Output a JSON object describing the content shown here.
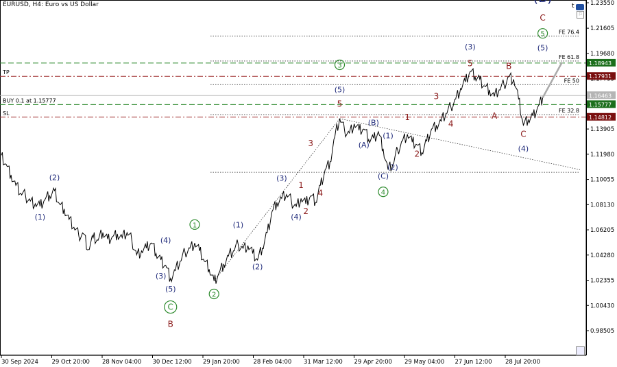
{
  "header": {
    "title": "EURUSD, H4:  Euro vs US Dollar"
  },
  "corner": {
    "t_label": "t"
  },
  "colors": {
    "navy": "#1f2a7a",
    "darkred": "#8b1a1a",
    "green": "#2e8b2e",
    "tp_line": "#a03030",
    "buy_line": "#2e8b2e",
    "fib_line": "#333333",
    "price_green": "#1b6e1b",
    "price_red": "#7a0f0f",
    "price_grey": "#b5b5b5"
  },
  "chart_data": {
    "type": "line",
    "symbol": "EURUSD",
    "timeframe": "H4",
    "y_ticks": [
      1.2355,
      1.21605,
      1.1968,
      1.17755,
      1.1583,
      1.13905,
      1.1198,
      1.10055,
      1.0813,
      1.06205,
      1.0428,
      1.02355,
      1.0043,
      0.98505
    ],
    "y_labels": [
      "1.23550",
      "1.21605",
      "1.19680",
      "1.17755",
      "1.15830",
      "1.13905",
      "1.11980",
      "1.10055",
      "1.08130",
      "1.06205",
      "1.04280",
      "1.02355",
      "1.00430",
      "0.98505"
    ],
    "x_labels": [
      "30 Sep 2024",
      "29 Oct 20:00",
      "28 Nov 04:00",
      "30 Dec 12:00",
      "29 Jan 20:00",
      "28 Feb 04:00",
      "31 Mar 12:00",
      "29 Apr 20:00",
      "29 May 04:00",
      "27 Jun 12:00",
      "28 Jul 20:00"
    ],
    "price_path": [
      [
        0,
        1.119
      ],
      [
        1,
        1.112
      ],
      [
        2,
        1.104
      ],
      [
        3,
        1.096
      ],
      [
        4,
        1.09
      ],
      [
        5,
        1.088
      ],
      [
        6,
        1.084
      ],
      [
        7,
        1.082
      ],
      [
        8,
        1.08
      ],
      [
        9,
        1.085
      ],
      [
        10,
        1.088
      ],
      [
        11,
        1.092
      ],
      [
        12,
        1.082
      ],
      [
        13,
        1.078
      ],
      [
        14,
        1.07
      ],
      [
        15,
        1.064
      ],
      [
        16,
        1.058
      ],
      [
        17,
        1.059
      ],
      [
        18,
        1.047
      ],
      [
        19,
        1.056
      ],
      [
        20,
        1.054
      ],
      [
        21,
        1.06
      ],
      [
        22,
        1.055
      ],
      [
        23,
        1.057
      ],
      [
        24,
        1.059
      ],
      [
        25,
        1.056
      ],
      [
        26,
        1.06
      ],
      [
        27,
        1.054
      ],
      [
        28,
        1.043
      ],
      [
        29,
        1.046
      ],
      [
        30,
        1.048
      ],
      [
        31,
        1.052
      ],
      [
        32,
        1.044
      ],
      [
        33,
        1.039
      ],
      [
        34,
        1.035
      ],
      [
        35,
        1.025
      ],
      [
        36,
        1.031
      ],
      [
        37,
        1.038
      ],
      [
        38,
        1.045
      ],
      [
        39,
        1.048
      ],
      [
        40,
        1.052
      ],
      [
        41,
        1.046
      ],
      [
        42,
        1.038
      ],
      [
        43,
        1.032
      ],
      [
        44,
        1.023
      ],
      [
        45,
        1.029
      ],
      [
        46,
        1.036
      ],
      [
        47,
        1.042
      ],
      [
        48,
        1.046
      ],
      [
        49,
        1.051
      ],
      [
        50,
        1.048
      ],
      [
        51,
        1.05
      ],
      [
        52,
        1.044
      ],
      [
        53,
        1.039
      ],
      [
        54,
        1.048
      ],
      [
        55,
        1.06
      ],
      [
        56,
        1.076
      ],
      [
        57,
        1.083
      ],
      [
        58,
        1.086
      ],
      [
        59,
        1.089
      ],
      [
        60,
        1.084
      ],
      [
        61,
        1.08
      ],
      [
        62,
        1.086
      ],
      [
        63,
        1.082
      ],
      [
        64,
        1.088
      ],
      [
        65,
        1.083
      ],
      [
        66,
        1.096
      ],
      [
        67,
        1.108
      ],
      [
        68,
        1.114
      ],
      [
        69,
        1.133
      ],
      [
        70,
        1.147
      ],
      [
        71,
        1.138
      ],
      [
        72,
        1.136
      ],
      [
        73,
        1.143
      ],
      [
        74,
        1.138
      ],
      [
        75,
        1.139
      ],
      [
        76,
        1.131
      ],
      [
        77,
        1.132
      ],
      [
        78,
        1.137
      ],
      [
        79,
        1.124
      ],
      [
        80,
        1.108
      ],
      [
        81,
        1.112
      ],
      [
        82,
        1.123
      ],
      [
        83,
        1.13
      ],
      [
        84,
        1.135
      ],
      [
        85,
        1.129
      ],
      [
        86,
        1.127
      ],
      [
        87,
        1.121
      ],
      [
        88,
        1.13
      ],
      [
        89,
        1.139
      ],
      [
        90,
        1.142
      ],
      [
        91,
        1.145
      ],
      [
        92,
        1.151
      ],
      [
        93,
        1.156
      ],
      [
        94,
        1.162
      ],
      [
        95,
        1.17
      ],
      [
        96,
        1.175
      ],
      [
        97,
        1.183
      ],
      [
        98,
        1.179
      ],
      [
        99,
        1.177
      ],
      [
        100,
        1.172
      ],
      [
        101,
        1.169
      ],
      [
        102,
        1.164
      ],
      [
        103,
        1.169
      ],
      [
        104,
        1.173
      ],
      [
        105,
        1.179
      ],
      [
        106,
        1.177
      ],
      [
        107,
        1.162
      ],
      [
        108,
        1.142
      ],
      [
        109,
        1.146
      ],
      [
        110,
        1.149
      ],
      [
        111,
        1.156
      ],
      [
        112,
        1.163
      ]
    ],
    "projection": [
      [
        112,
        1.163
      ],
      [
        116,
        1.19
      ]
    ],
    "horizontal_lines": [
      {
        "name": "tp",
        "label": "TP",
        "price": 1.17931,
        "style": "dashdot",
        "color": "#a03030"
      },
      {
        "name": "buy",
        "label": "BUY 0.1 at 1.15777",
        "price": 1.15777,
        "style": "dashed",
        "color": "#2e8b2e"
      },
      {
        "name": "sl",
        "label": "SL",
        "price": 1.14812,
        "style": "dashdot",
        "color": "#a03030"
      },
      {
        "name": "green-dash",
        "label": "",
        "price": 1.18943,
        "style": "dashed",
        "color": "#2e8b2e"
      },
      {
        "name": "current",
        "label": "",
        "price": 1.16463,
        "style": "solid",
        "color": "#bbbbbb"
      }
    ],
    "fib_levels": [
      {
        "label": "FE 76.4",
        "price": 1.21
      },
      {
        "label": "FE 61.8",
        "price": 1.191
      },
      {
        "label": "FE 50",
        "price": 1.173
      },
      {
        "label": "FE 32.8",
        "price": 1.15
      },
      {
        "label": "",
        "price": 1.106
      }
    ],
    "price_tags": [
      {
        "text": "1.18943",
        "price": 1.18943,
        "bg": "#1b6e1b"
      },
      {
        "text": "1.17931",
        "price": 1.17931,
        "bg": "#7a0f0f"
      },
      {
        "text": "1.16463",
        "price": 1.16463,
        "bg": "#b5b5b5"
      },
      {
        "text": "1.15777",
        "price": 1.15777,
        "bg": "#1b6e1b"
      },
      {
        "text": "1.14812",
        "price": 1.14812,
        "bg": "#7a0f0f"
      }
    ],
    "wave_labels": [
      {
        "text": "(1)",
        "color": "navy",
        "i": 8,
        "p": 1.07
      },
      {
        "text": "(2)",
        "color": "navy",
        "i": 11,
        "p": 1.1
      },
      {
        "text": "(3)",
        "color": "navy",
        "i": 33,
        "p": 1.025
      },
      {
        "text": "(4)",
        "color": "navy",
        "i": 34,
        "p": 1.052
      },
      {
        "text": "(5)",
        "color": "navy",
        "i": 35,
        "p": 1.015
      },
      {
        "text": "C",
        "color": "green",
        "circle": true,
        "i": 35,
        "p": 1.001
      },
      {
        "text": "B",
        "color": "darkred",
        "i": 35,
        "p": 0.988
      },
      {
        "text": "1",
        "color": "green",
        "circle": true,
        "i": 40,
        "p": 1.064
      },
      {
        "text": "2",
        "color": "green",
        "circle": true,
        "i": 44,
        "p": 1.011
      },
      {
        "text": "(1)",
        "color": "navy",
        "i": 49,
        "p": 1.064
      },
      {
        "text": "(2)",
        "color": "navy",
        "i": 53,
        "p": 1.032
      },
      {
        "text": "(3)",
        "color": "navy",
        "i": 58,
        "p": 1.0995
      },
      {
        "text": "(4)",
        "color": "navy",
        "i": 61,
        "p": 1.07
      },
      {
        "text": "1",
        "color": "darkred",
        "i": 62,
        "p": 1.094
      },
      {
        "text": "2",
        "color": "darkred",
        "i": 63,
        "p": 1.074
      },
      {
        "text": "3",
        "color": "darkred",
        "i": 64,
        "p": 1.126
      },
      {
        "text": "4",
        "color": "darkred",
        "i": 66,
        "p": 1.088
      },
      {
        "text": "5",
        "color": "darkred",
        "i": 70,
        "p": 1.156
      },
      {
        "text": "(5)",
        "color": "navy",
        "i": 70,
        "p": 1.167
      },
      {
        "text": "3",
        "color": "green",
        "circle": true,
        "i": 70,
        "p": 1.186
      },
      {
        "text": "(A)",
        "color": "navy",
        "i": 75,
        "p": 1.125
      },
      {
        "text": "(B)",
        "color": "navy",
        "i": 77,
        "p": 1.142
      },
      {
        "text": "(1)",
        "color": "navy",
        "i": 80,
        "p": 1.132
      },
      {
        "text": "(2)",
        "color": "navy",
        "i": 81,
        "p": 1.108
      },
      {
        "text": "(C)",
        "color": "navy",
        "i": 79,
        "p": 1.101
      },
      {
        "text": "4",
        "color": "green",
        "circle": true,
        "i": 79,
        "p": 1.089
      },
      {
        "text": "1",
        "color": "darkred",
        "i": 84,
        "p": 1.146
      },
      {
        "text": "2",
        "color": "darkred",
        "i": 86,
        "p": 1.118
      },
      {
        "text": "3",
        "color": "darkred",
        "i": 90,
        "p": 1.162
      },
      {
        "text": "4",
        "color": "darkred",
        "i": 93,
        "p": 1.141
      },
      {
        "text": "(3)",
        "color": "navy",
        "i": 97,
        "p": 1.2
      },
      {
        "text": "5",
        "color": "darkred",
        "i": 97,
        "p": 1.187
      },
      {
        "text": "A",
        "color": "darkred",
        "i": 102,
        "p": 1.147
      },
      {
        "text": "B",
        "color": "darkred",
        "i": 105,
        "p": 1.185
      },
      {
        "text": "C",
        "color": "darkred",
        "i": 108,
        "p": 1.133
      },
      {
        "text": "(4)",
        "color": "navy",
        "i": 108,
        "p": 1.122
      },
      {
        "text": "(5)",
        "color": "navy",
        "i": 112,
        "p": 1.199
      },
      {
        "text": "5",
        "color": "green",
        "circle": true,
        "i": 112,
        "p": 1.21
      },
      {
        "text": "C",
        "color": "darkred",
        "i": 112,
        "p": 1.222
      },
      {
        "text": "(B)",
        "color": "navy",
        "big": true,
        "i": 112,
        "p": 1.236
      }
    ]
  }
}
